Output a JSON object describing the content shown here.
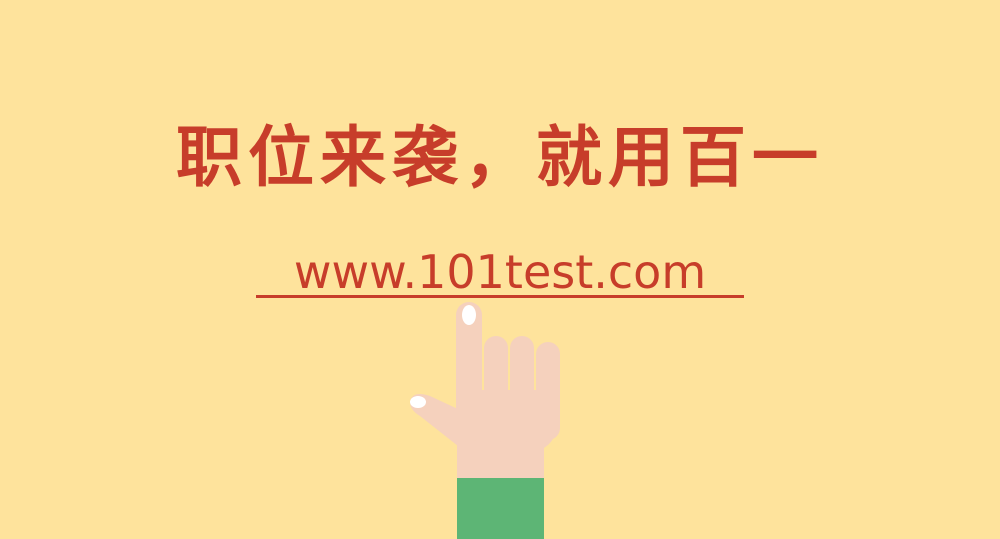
{
  "banner": {
    "headline": "职位来袭，就用百一",
    "url": "www.101test.com"
  },
  "colors": {
    "background": "#fee39c",
    "accent": "#c73d2a",
    "skin": "#f5d1bd",
    "sleeve": "#5db575",
    "nail": "#ffffff"
  },
  "icons": {
    "hand": "pointing-hand-icon"
  }
}
